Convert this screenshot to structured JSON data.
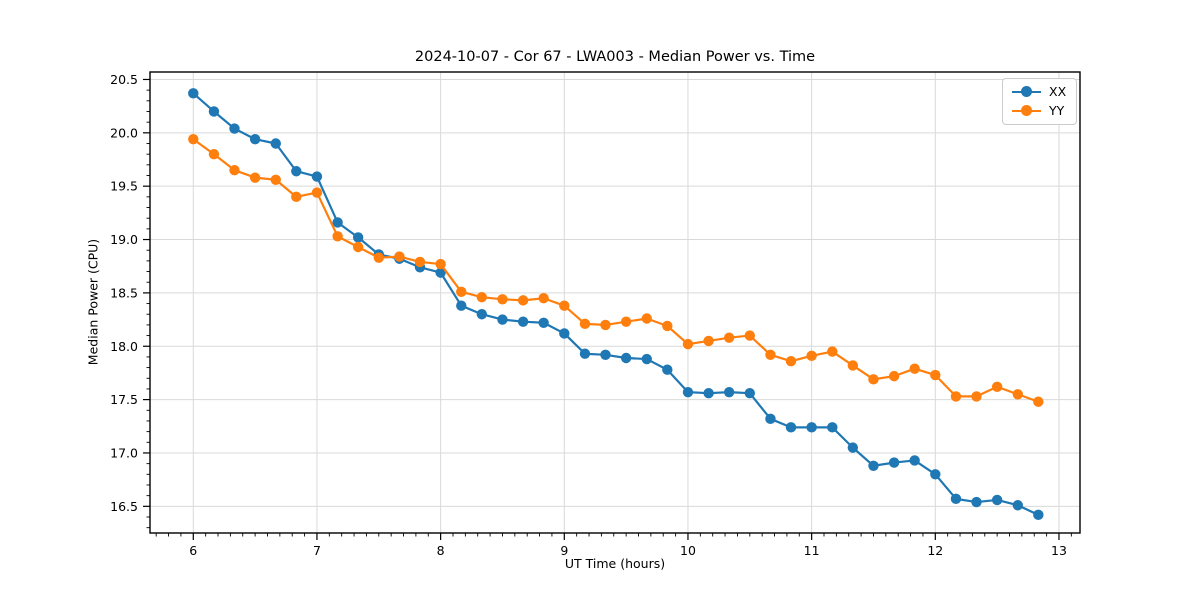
{
  "chart_data": {
    "type": "line",
    "title": "2024-10-07 - Cor 67 - LWA003 - Median Power vs. Time",
    "xlabel": "UT Time (hours)",
    "ylabel": "Median Power (CPU)",
    "xlim": [
      5.65,
      13.17
    ],
    "ylim": [
      16.25,
      20.57
    ],
    "x_ticks": [
      6,
      7,
      8,
      9,
      10,
      11,
      12,
      13
    ],
    "y_ticks": [
      16.5,
      17.0,
      17.5,
      18.0,
      18.5,
      19.0,
      19.5,
      20.0,
      20.5
    ],
    "x_minor_step": 0.1,
    "y_minor_step": 0.1,
    "grid": true,
    "legend_position": "upper right",
    "x": [
      6.0,
      6.167,
      6.333,
      6.5,
      6.667,
      6.833,
      7.0,
      7.167,
      7.333,
      7.5,
      7.667,
      7.833,
      8.0,
      8.167,
      8.333,
      8.5,
      8.667,
      8.833,
      9.0,
      9.167,
      9.333,
      9.5,
      9.667,
      9.833,
      10.0,
      10.167,
      10.333,
      10.5,
      10.667,
      10.833,
      11.0,
      11.167,
      11.333,
      11.5,
      11.667,
      11.833,
      12.0,
      12.167,
      12.333,
      12.5,
      12.667,
      12.833
    ],
    "series": [
      {
        "name": "XX",
        "color": "#1f77b4",
        "values": [
          20.37,
          20.2,
          20.04,
          19.94,
          19.9,
          19.64,
          19.59,
          19.16,
          19.02,
          18.86,
          18.82,
          18.74,
          18.69,
          18.38,
          18.3,
          18.25,
          18.23,
          18.22,
          18.12,
          17.93,
          17.92,
          17.89,
          17.88,
          17.78,
          17.57,
          17.56,
          17.57,
          17.56,
          17.32,
          17.24,
          17.24,
          17.24,
          17.05,
          16.88,
          16.91,
          16.93,
          16.8,
          16.57,
          16.54,
          16.56,
          16.51,
          16.42
        ]
      },
      {
        "name": "YY",
        "color": "#ff7f0e",
        "values": [
          19.94,
          19.8,
          19.65,
          19.58,
          19.56,
          19.4,
          19.44,
          19.03,
          18.93,
          18.83,
          18.84,
          18.79,
          18.77,
          18.51,
          18.46,
          18.44,
          18.43,
          18.45,
          18.38,
          18.21,
          18.2,
          18.23,
          18.26,
          18.19,
          18.02,
          18.05,
          18.08,
          18.1,
          17.92,
          17.86,
          17.91,
          17.95,
          17.82,
          17.69,
          17.72,
          17.79,
          17.73,
          17.53,
          17.53,
          17.62,
          17.55,
          17.48
        ]
      }
    ]
  }
}
